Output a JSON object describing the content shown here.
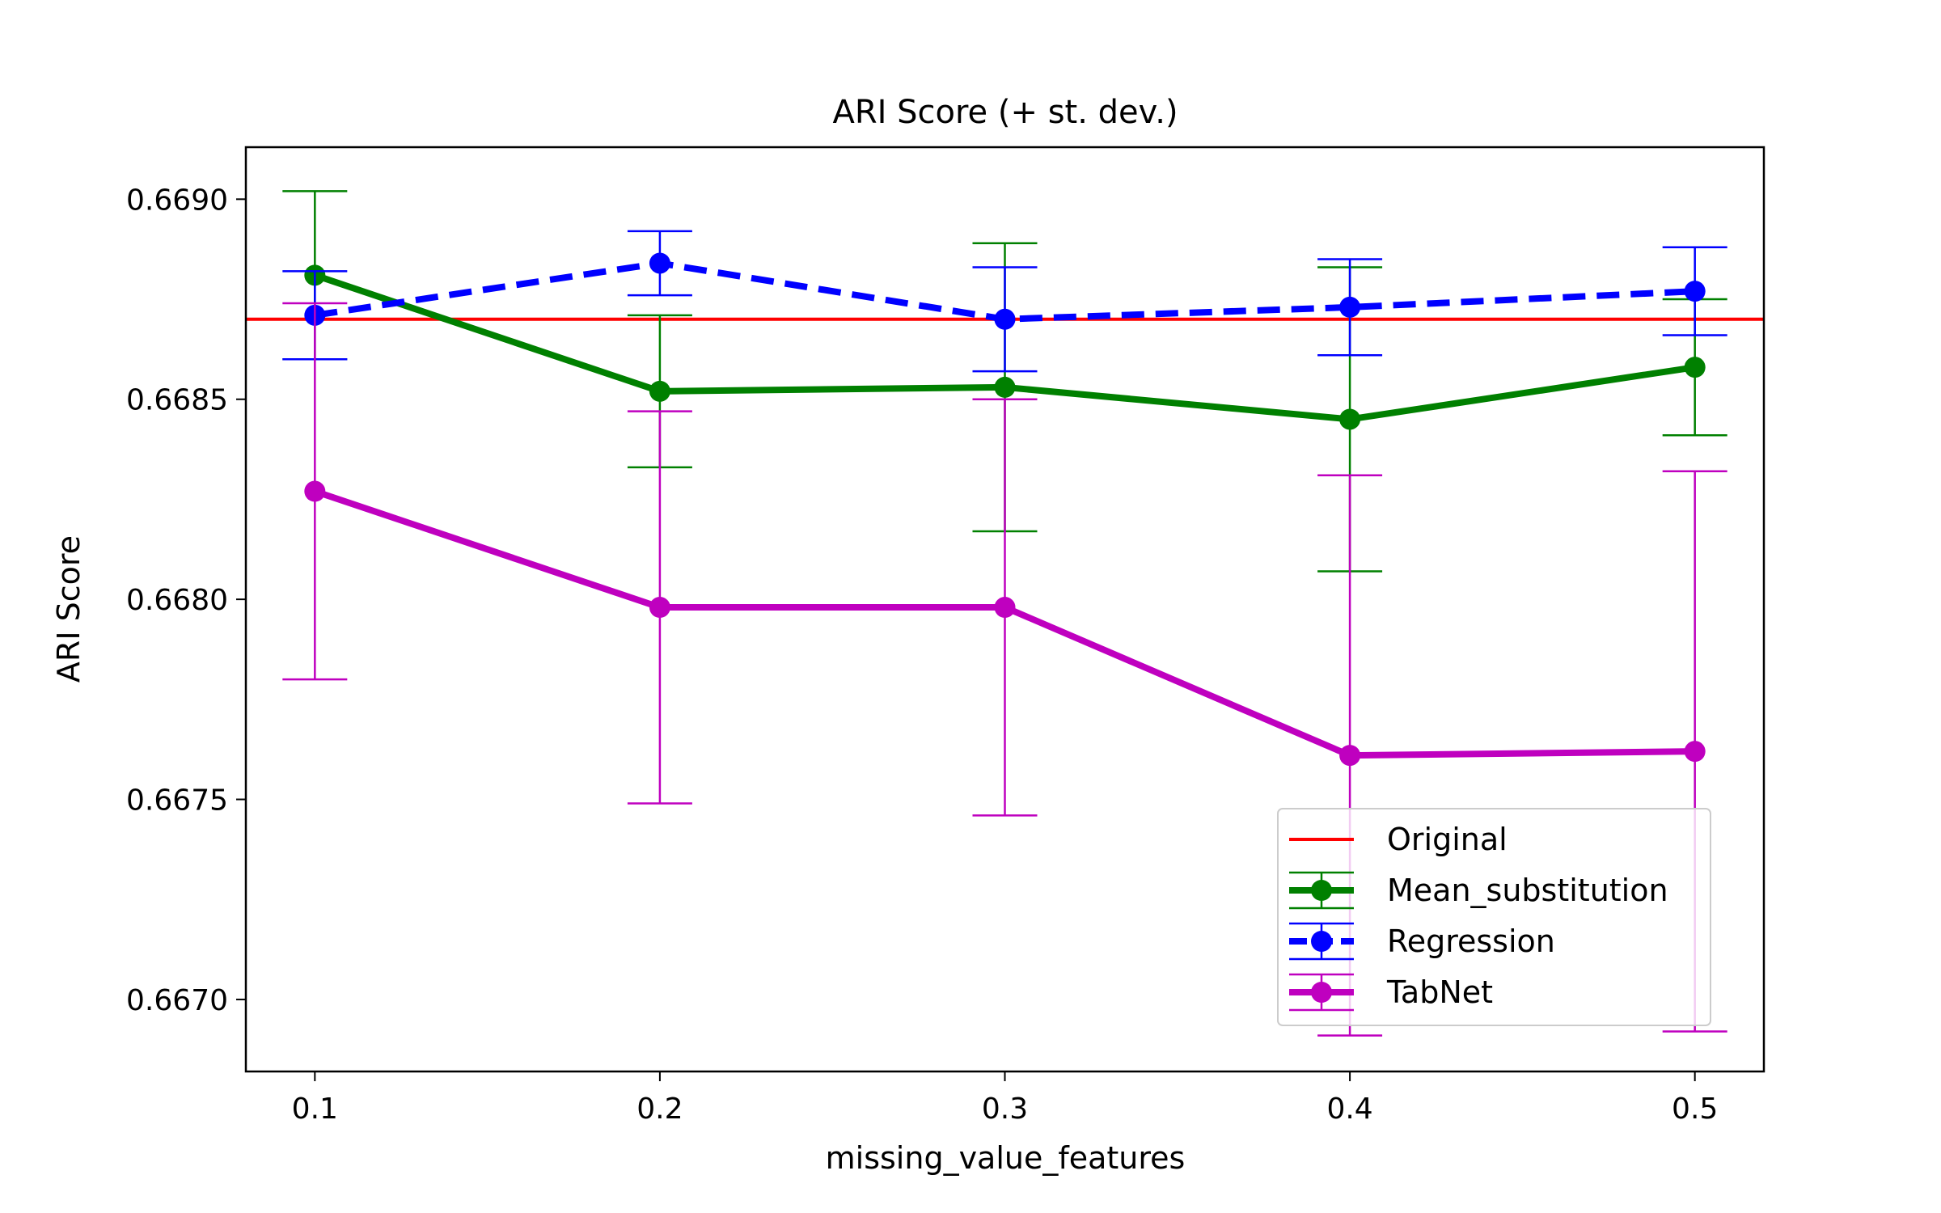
{
  "chart_data": {
    "type": "line",
    "title": "ARI Score (+ st. dev.)",
    "xlabel": "missing_value_features",
    "ylabel": "ARI Score",
    "x": [
      0.1,
      0.2,
      0.3,
      0.4,
      0.5
    ],
    "x_tick_labels": [
      "0.1",
      "0.2",
      "0.3",
      "0.4",
      "0.5"
    ],
    "xlim": [
      0.08,
      0.52
    ],
    "ylim": [
      0.66682,
      0.66913
    ],
    "y_ticks": [
      0.667,
      0.6675,
      0.668,
      0.6685,
      0.669
    ],
    "y_tick_labels": [
      "0.6670",
      "0.6675",
      "0.6680",
      "0.6685",
      "0.6690"
    ],
    "grid": false,
    "legend_position": "lower-right",
    "reference_line": {
      "name": "Original",
      "value": 0.6687,
      "color": "#ff0000"
    },
    "series": [
      {
        "name": "Mean_substitution",
        "color": "#008000",
        "dash": "solid",
        "values": [
          0.66881,
          0.66852,
          0.66853,
          0.66845,
          0.66858
        ],
        "stdev": [
          0.00021,
          0.00019,
          0.00036,
          0.00038,
          0.00017
        ]
      },
      {
        "name": "Regression",
        "color": "#0000ff",
        "dash": "dashed",
        "values": [
          0.66871,
          0.66884,
          0.6687,
          0.66873,
          0.66877
        ],
        "stdev": [
          0.00011,
          8e-05,
          0.00013,
          0.00012,
          0.00011
        ]
      },
      {
        "name": "TabNet",
        "color": "#bf00bf",
        "dash": "solid",
        "values": [
          0.66827,
          0.66798,
          0.66798,
          0.66761,
          0.66762
        ],
        "stdev": [
          0.00047,
          0.00049,
          0.00052,
          0.0007,
          0.0007
        ]
      }
    ]
  }
}
